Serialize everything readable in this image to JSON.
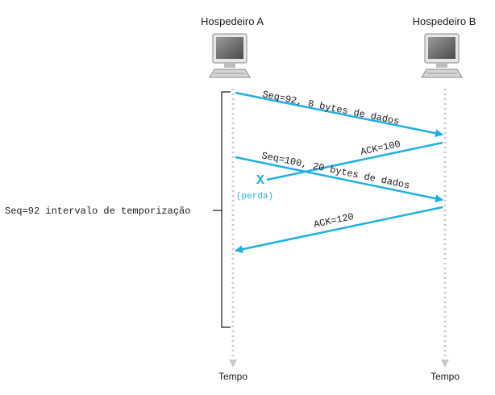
{
  "hosts": {
    "a": {
      "label": "Hospedeiro A",
      "time_label": "Tempo"
    },
    "b": {
      "label": "Hospedeiro B",
      "time_label": "Tempo"
    }
  },
  "messages": [
    {
      "from": "A",
      "to": "B",
      "label": "Seq=92, 8 bytes de dados",
      "lost": false
    },
    {
      "from": "B",
      "to": "A",
      "label": "ACK=100",
      "lost": true
    },
    {
      "from": "A",
      "to": "B",
      "label": "Seq=100, 20 bytes de dados",
      "lost": false
    },
    {
      "from": "B",
      "to": "A",
      "label": "ACK=120",
      "lost": false
    }
  ],
  "loss": {
    "marker": "X",
    "label": "(perda)"
  },
  "timeout": {
    "label": "Seq=92 intervalo de temporização"
  },
  "colors": {
    "arrow": "#1fb0e0",
    "timeline": "#c8c8c8",
    "text": "#1a1a1a"
  }
}
